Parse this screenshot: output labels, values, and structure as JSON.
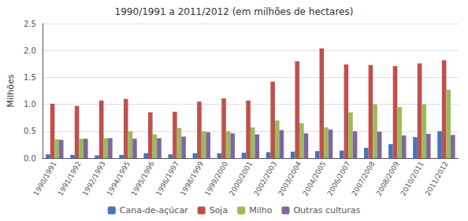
{
  "chart_data": {
    "type": "bar",
    "title": "1990/1991 a 2011/2012 (em milhões de hectares)",
    "ylabel": "Milhões",
    "categories": [
      "1990/1991",
      "1991/1992",
      "1992/1993",
      "1994/1995",
      "1995/1996",
      "1996/1997",
      "1998/1999",
      "1999/2000",
      "2000/2001",
      "2002/2003",
      "2003/2004",
      "2004/2005",
      "2006/2007",
      "2007/2008",
      "2008/2009",
      "2010/2011",
      "2011/2012"
    ],
    "series": [
      {
        "name": "Cana-de-açúcar",
        "color": "#4472C4",
        "values": [
          0.07,
          0.06,
          0.05,
          0.06,
          0.09,
          0.07,
          0.09,
          0.09,
          0.1,
          0.11,
          0.12,
          0.13,
          0.14,
          0.19,
          0.26,
          0.39,
          0.5
        ]
      },
      {
        "name": "Soja",
        "color": "#C0504D",
        "values": [
          1.01,
          0.97,
          1.07,
          1.1,
          0.85,
          0.86,
          1.05,
          1.11,
          1.07,
          1.42,
          1.8,
          2.04,
          1.74,
          1.73,
          1.71,
          1.76,
          1.82
        ]
      },
      {
        "name": "Milho",
        "color": "#9BBB59",
        "values": [
          0.35,
          0.36,
          0.37,
          0.5,
          0.44,
          0.56,
          0.5,
          0.5,
          0.57,
          0.7,
          0.65,
          0.57,
          0.85,
          1.0,
          0.95,
          1.0,
          1.27
        ]
      },
      {
        "name": "Outras culturas",
        "color": "#8064A2",
        "values": [
          0.34,
          0.36,
          0.37,
          0.36,
          0.37,
          0.4,
          0.48,
          0.46,
          0.44,
          0.52,
          0.46,
          0.53,
          0.5,
          0.49,
          0.42,
          0.45,
          0.43
        ]
      }
    ],
    "ylim": [
      0,
      2.5
    ],
    "yticks": [
      {
        "value": 0,
        "label": "0.0"
      },
      0.5,
      {
        "value": 1,
        "label": "1.0"
      },
      1.5,
      {
        "value": 2,
        "label": "2.0"
      },
      2.5
    ],
    "grid": true,
    "legend": "bottom"
  }
}
